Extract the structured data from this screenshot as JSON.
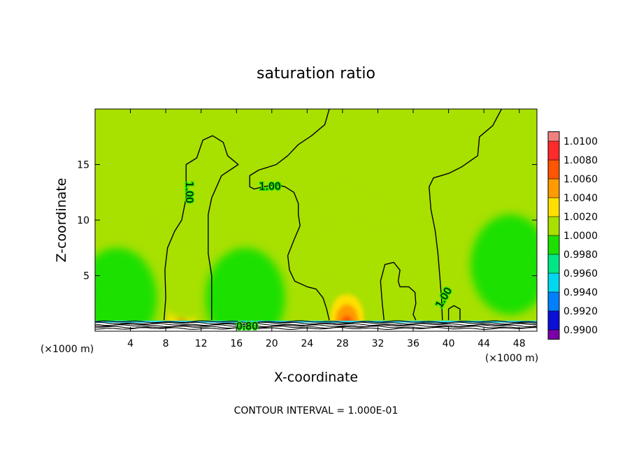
{
  "chart_data": {
    "type": "heatmap",
    "title": "saturation ratio",
    "xlabel": "X-coordinate",
    "ylabel": "Z-coordinate",
    "x_unit_left": "(×1000 m)",
    "x_unit_right": "(×1000 m)",
    "xlim": [
      0,
      50
    ],
    "ylim": [
      0,
      20
    ],
    "x_ticks": [
      4,
      8,
      12,
      16,
      20,
      24,
      28,
      32,
      36,
      40,
      44,
      48
    ],
    "y_ticks": [
      5,
      10,
      15
    ],
    "background_value": 1.0,
    "colorbar": {
      "labels": [
        "1.0100",
        "1.0080",
        "1.0060",
        "1.0040",
        "1.0020",
        "1.0000",
        "0.9980",
        "0.9960",
        "0.9940",
        "0.9920",
        "0.9900"
      ],
      "values": [
        1.01,
        1.008,
        1.006,
        1.004,
        1.002,
        1.0,
        0.998,
        0.996,
        0.994,
        0.992,
        0.99
      ],
      "colors": [
        "#f08080",
        "#ff2a2a",
        "#ff5500",
        "#ff9a00",
        "#ffe000",
        "#a8e000",
        "#1ee000",
        "#00e884",
        "#00d8f0",
        "#0080ff",
        "#0a10d8",
        "#2a0090",
        "#7b00a8"
      ]
    },
    "maxima": [
      {
        "x": 28.5,
        "z": 1.3,
        "value": 1.007
      },
      {
        "x": 9.8,
        "z": 1.4,
        "value": 1.004
      },
      {
        "x": 28.5,
        "z": 8.0,
        "value": 1.0015
      },
      {
        "x": 10.5,
        "z": 5.5,
        "value": 1.001
      }
    ],
    "minima": [
      {
        "x": 47,
        "z": 6.0,
        "value": 0.9985
      },
      {
        "x": 2.5,
        "z": 3.0,
        "value": 0.999
      },
      {
        "x": 17,
        "z": 3.0,
        "value": 0.999
      }
    ],
    "contour_labels": [
      {
        "text": "1.00",
        "x": 10.6,
        "z": 12.5,
        "rotate": 90
      },
      {
        "text": "1.00",
        "x": 19.8,
        "z": 13.0,
        "rotate": 0
      },
      {
        "text": "1.00",
        "x": 39.5,
        "z": 3.0,
        "rotate": -60
      },
      {
        "text": "0.80",
        "x": 17.2,
        "z": 0.4,
        "rotate": 0
      }
    ],
    "contour_lines": [
      {
        "level": 1.0,
        "points": [
          [
            7.8,
            1.0
          ],
          [
            8.0,
            3.0
          ],
          [
            7.9,
            5.5
          ],
          [
            8.2,
            7.5
          ],
          [
            9.0,
            9.0
          ],
          [
            9.8,
            10.0
          ],
          [
            10.3,
            12.0
          ],
          [
            10.3,
            15.0
          ],
          [
            11.5,
            15.6
          ],
          [
            12.2,
            17.2
          ],
          [
            13.3,
            17.6
          ],
          [
            14.5,
            17.0
          ],
          [
            15.0,
            15.8
          ],
          [
            16.2,
            15.0
          ],
          [
            14.3,
            14.0
          ],
          [
            13.2,
            12.0
          ],
          [
            12.8,
            10.5
          ],
          [
            12.8,
            7.0
          ],
          [
            13.2,
            5.0
          ],
          [
            13.2,
            1.0
          ]
        ]
      },
      {
        "level": 1.0,
        "points": [
          [
            26.5,
            20.0
          ],
          [
            26.0,
            18.6
          ],
          [
            24.5,
            17.6
          ],
          [
            23.0,
            16.8
          ],
          [
            21.8,
            15.8
          ],
          [
            20.5,
            15.0
          ],
          [
            18.5,
            14.5
          ],
          [
            17.5,
            14.0
          ],
          [
            17.5,
            13.0
          ],
          [
            18.0,
            12.8
          ],
          [
            19.0,
            13.0
          ],
          [
            20.5,
            13.2
          ],
          [
            21.5,
            13.0
          ],
          [
            22.5,
            12.5
          ],
          [
            23.0,
            11.5
          ],
          [
            23.0,
            10.5
          ],
          [
            23.2,
            9.5
          ],
          [
            22.5,
            8.2
          ],
          [
            21.8,
            6.8
          ],
          [
            22.0,
            5.5
          ],
          [
            22.6,
            4.5
          ],
          [
            24.0,
            4.0
          ],
          [
            25.0,
            3.8
          ],
          [
            25.8,
            3.0
          ],
          [
            26.2,
            2.0
          ],
          [
            26.5,
            1.0
          ]
        ]
      },
      {
        "level": 1.0,
        "points": [
          [
            32.7,
            1.0
          ],
          [
            32.5,
            2.5
          ],
          [
            32.3,
            4.5
          ],
          [
            32.8,
            6.0
          ],
          [
            33.8,
            6.2
          ],
          [
            34.5,
            5.5
          ],
          [
            34.3,
            4.5
          ],
          [
            34.5,
            4.0
          ],
          [
            35.5,
            4.0
          ],
          [
            36.2,
            3.5
          ],
          [
            36.3,
            2.5
          ],
          [
            36.0,
            1.5
          ],
          [
            36.3,
            1.0
          ]
        ]
      },
      {
        "level": 1.0,
        "points": [
          [
            39.3,
            1.0
          ],
          [
            39.2,
            3.0
          ],
          [
            39.0,
            5.0
          ],
          [
            38.8,
            7.0
          ],
          [
            38.5,
            9.0
          ],
          [
            38.0,
            11.0
          ],
          [
            37.8,
            13.0
          ],
          [
            38.3,
            13.8
          ],
          [
            40.0,
            14.2
          ],
          [
            41.5,
            14.8
          ],
          [
            43.3,
            15.8
          ],
          [
            43.5,
            17.5
          ],
          [
            45.0,
            18.5
          ],
          [
            46.0,
            20.0
          ]
        ]
      },
      {
        "level": 1.0,
        "points": [
          [
            40.0,
            1.0
          ],
          [
            40.0,
            2.0
          ],
          [
            40.6,
            2.3
          ],
          [
            41.3,
            2.0
          ],
          [
            41.3,
            1.0
          ]
        ]
      }
    ],
    "legend": "right",
    "grid": false
  },
  "footer": "CONTOUR INTERVAL = 1.000E-01"
}
